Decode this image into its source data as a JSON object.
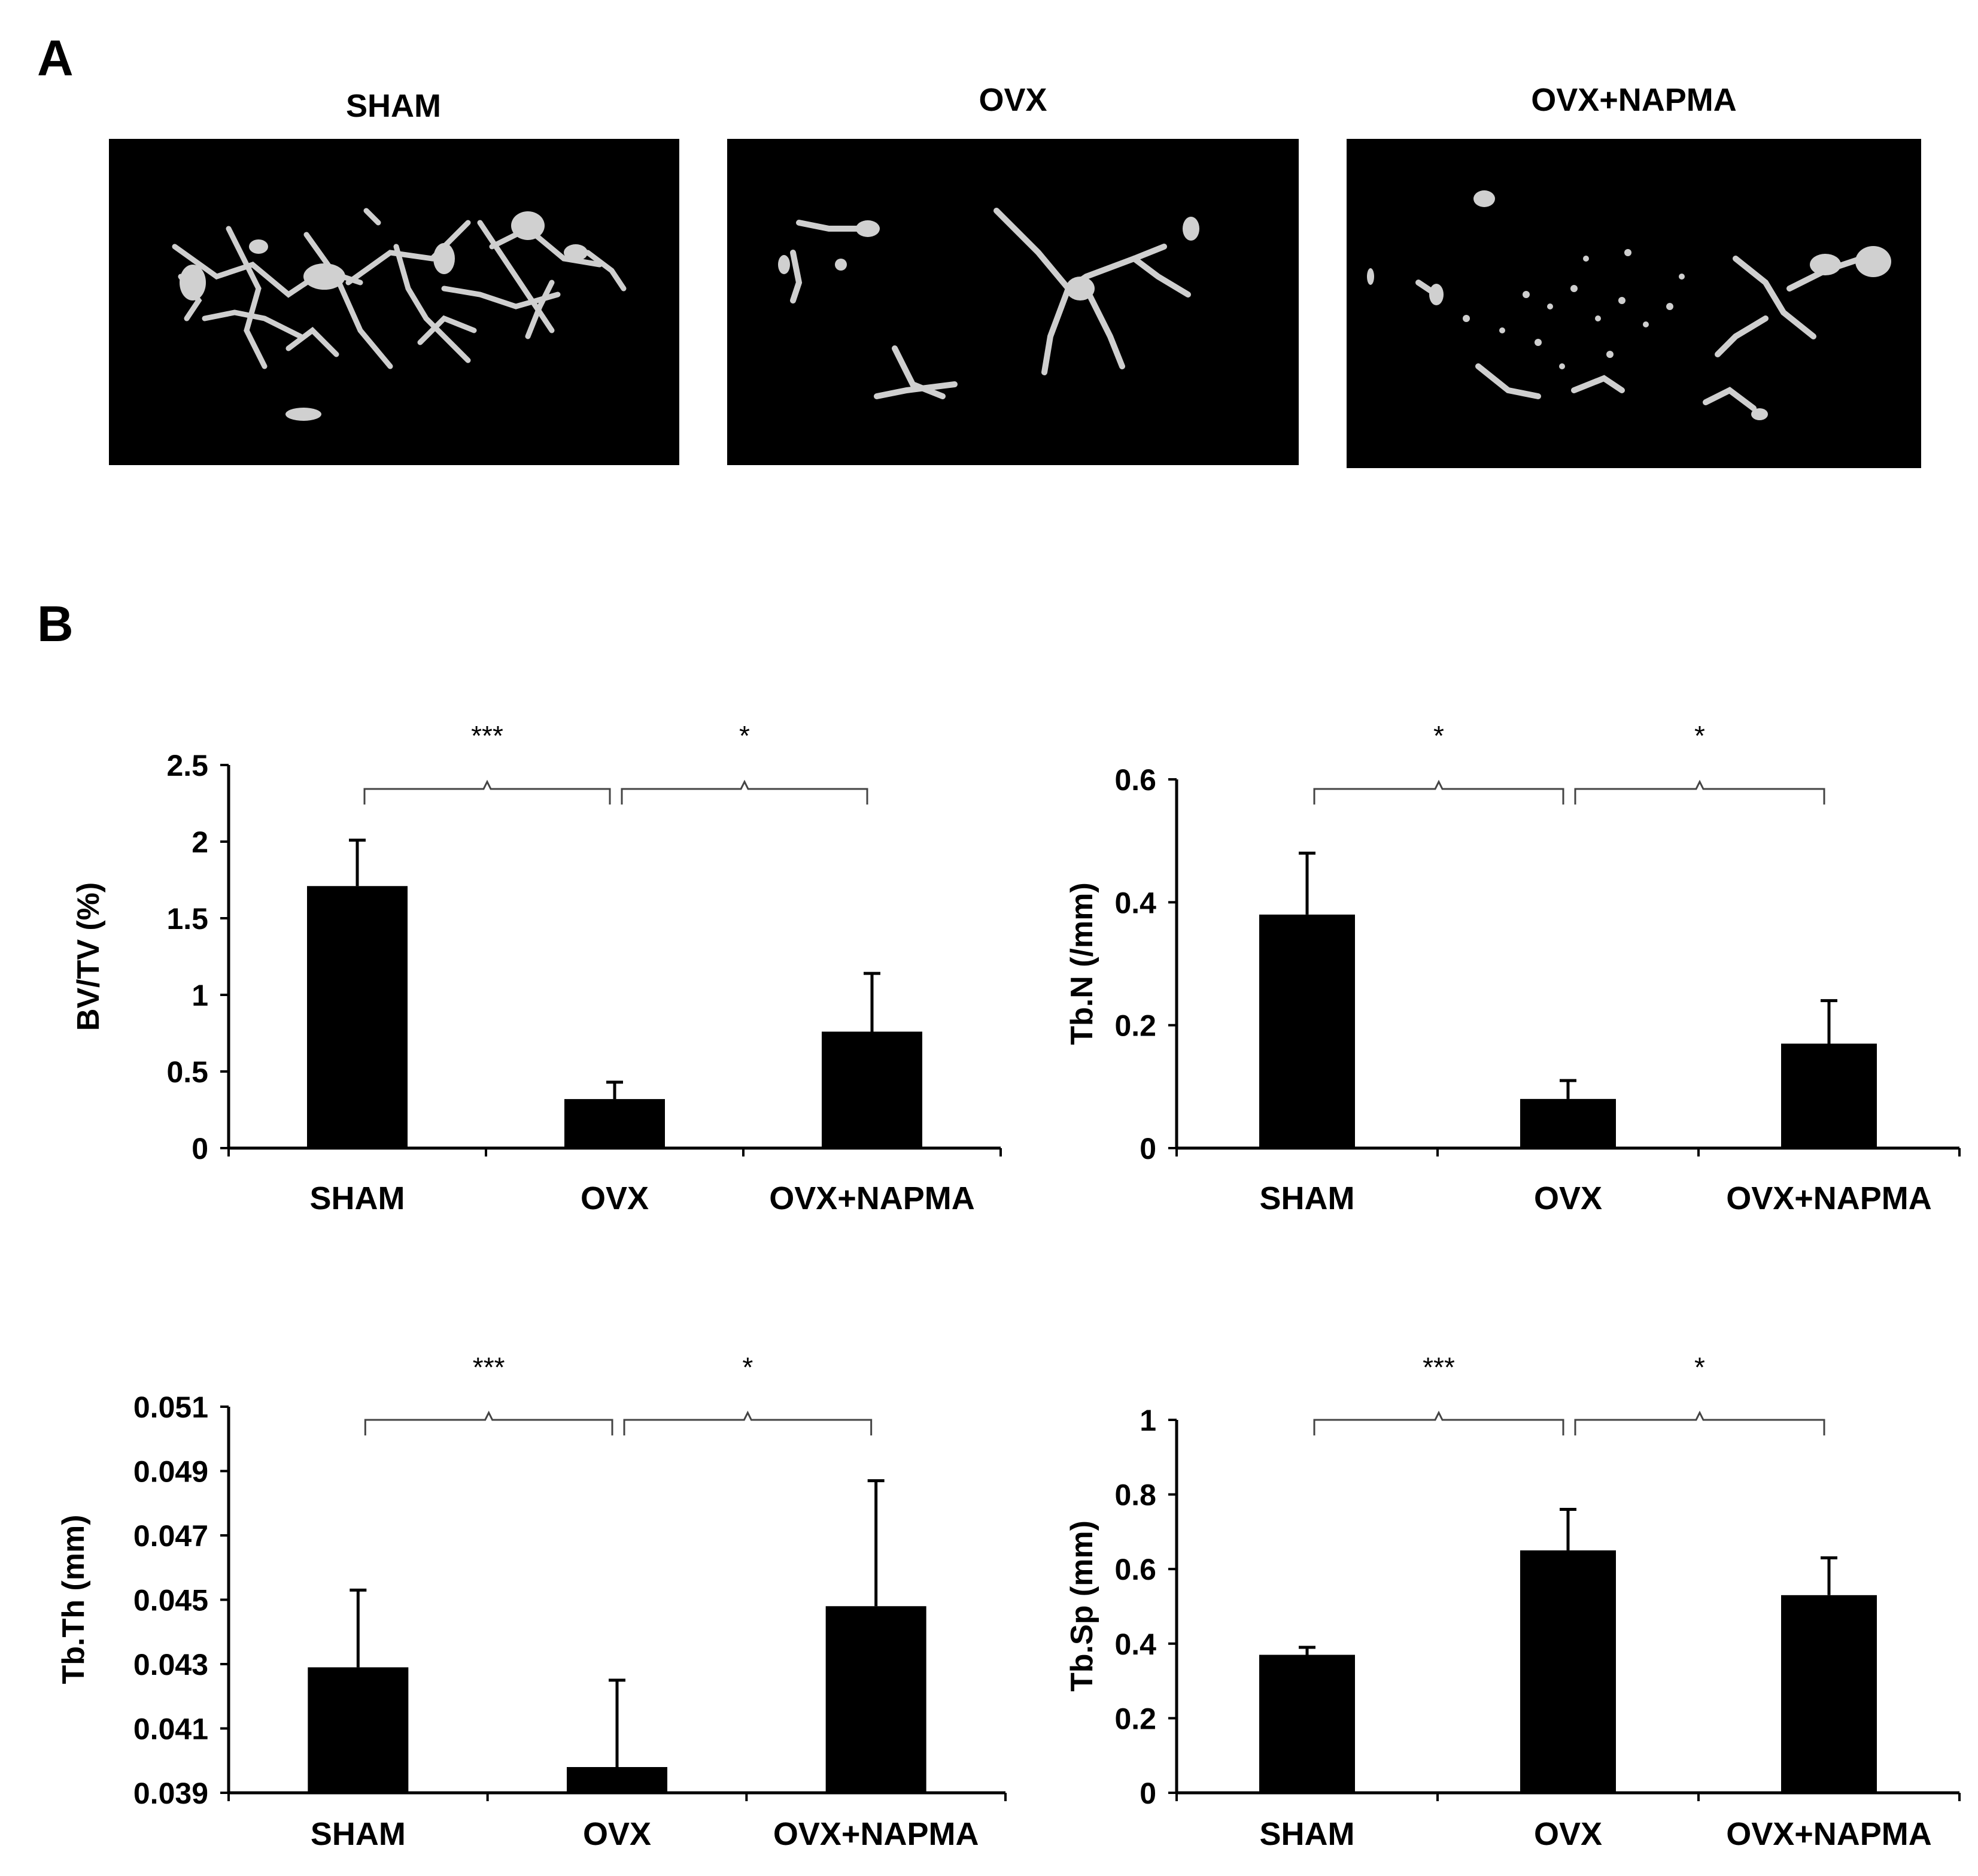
{
  "panel_a": {
    "letter": "A",
    "images": [
      {
        "title": "SHAM"
      },
      {
        "title": "OVX"
      },
      {
        "title": "OVX+NAPMA"
      }
    ]
  },
  "panel_b": {
    "letter": "B"
  },
  "colors": {
    "bar": "#000000",
    "bracket": "#444444",
    "ct_background": "#000000",
    "bone": "#d6d6d6"
  },
  "chart_data": [
    {
      "type": "bar",
      "categories": [
        "SHAM",
        "OVX",
        "OVX+NAPMA"
      ],
      "values": [
        1.71,
        0.32,
        0.76
      ],
      "errors": [
        0.3,
        0.11,
        0.38
      ],
      "ylabel": "BV/TV (%)",
      "ylim": [
        0,
        2.5
      ],
      "yticks": [
        "0",
        "0.5",
        "1",
        "1.5",
        "2",
        "2.5"
      ],
      "significance": [
        {
          "from": 0,
          "to": 1,
          "label": "***"
        },
        {
          "from": 1,
          "to": 2,
          "label": "*"
        }
      ],
      "grid": false
    },
    {
      "type": "bar",
      "categories": [
        "SHAM",
        "OVX",
        "OVX+NAPMA"
      ],
      "values": [
        0.38,
        0.08,
        0.17
      ],
      "errors": [
        0.1,
        0.03,
        0.07
      ],
      "ylabel": "Tb.N (/mm)",
      "ylim": [
        0,
        0.6
      ],
      "yticks": [
        "0",
        "0.2",
        "0.4",
        "0.6"
      ],
      "significance": [
        {
          "from": 0,
          "to": 1,
          "label": "*"
        },
        {
          "from": 1,
          "to": 2,
          "label": "*"
        }
      ],
      "grid": false
    },
    {
      "type": "bar",
      "categories": [
        "SHAM",
        "OVX",
        "OVX+NAPMA"
      ],
      "values": [
        0.0429,
        0.0398,
        0.0448
      ],
      "errors": [
        0.0024,
        0.0027,
        0.0039
      ],
      "ylabel": "Tb.Th (mm)",
      "ylim": [
        0.039,
        0.051
      ],
      "yticks": [
        "0.039",
        "0.041",
        "0.043",
        "0.045",
        "0.047",
        "0.049",
        "0.051"
      ],
      "significance": [
        {
          "from": 0,
          "to": 1,
          "label": "***"
        },
        {
          "from": 1,
          "to": 2,
          "label": "*"
        }
      ],
      "grid": false
    },
    {
      "type": "bar",
      "categories": [
        "SHAM",
        "OVX",
        "OVX+NAPMA"
      ],
      "values": [
        0.37,
        0.65,
        0.53
      ],
      "errors": [
        0.02,
        0.11,
        0.1
      ],
      "ylabel": "Tb.Sp (mm)",
      "ylim": [
        0,
        1
      ],
      "yticks": [
        "0",
        "0.2",
        "0.4",
        "0.6",
        "0.8",
        "1"
      ],
      "significance": [
        {
          "from": 0,
          "to": 1,
          "label": "***"
        },
        {
          "from": 1,
          "to": 2,
          "label": "*"
        }
      ],
      "grid": false
    }
  ]
}
